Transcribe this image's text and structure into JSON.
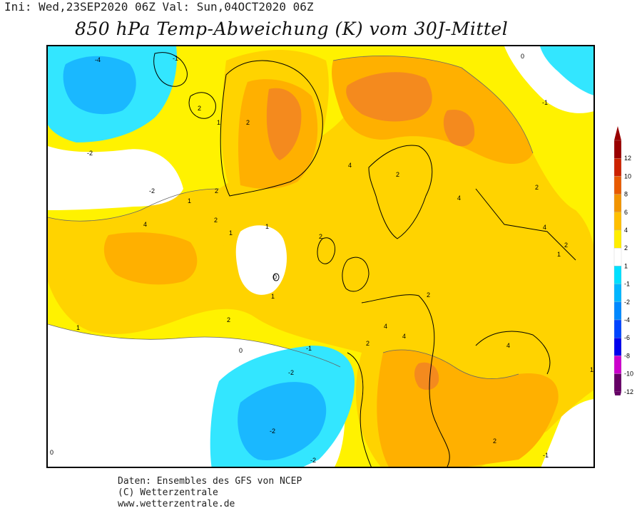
{
  "header": {
    "run_info": "Ini: Wed,23SEP2020 06Z Val: Sun,04OCT2020 06Z",
    "title": "850 hPa Temp-Abweichung (K) vom 30J-Mittel"
  },
  "legend": {
    "ticks": [
      "12",
      "10",
      "8",
      "6",
      "4",
      "2",
      "1",
      "-1",
      "-2",
      "-4",
      "-6",
      "-8",
      "-10",
      "-12"
    ],
    "colors": [
      "#990000",
      "#cc2200",
      "#e85a00",
      "#f29400",
      "#ffbf00",
      "#ffee00",
      "#ffffff",
      "#00e0ff",
      "#00b6ff",
      "#0088ff",
      "#0044ff",
      "#0000ee",
      "#cc00cc",
      "#660066"
    ]
  },
  "colors": {
    "anom_1_2": "#fff200",
    "anom_2_4": "#ffd300",
    "anom_4_6": "#ffb000",
    "anom_6_8": "#f48a1e",
    "neg_0_1": "#ffffff",
    "neg_1_2": "#33e6ff",
    "neg_2_4": "#1ab8ff"
  },
  "contour_labels": [
    {
      "text": "-4"
    },
    {
      "text": "-1"
    },
    {
      "text": "-1"
    },
    {
      "text": "-2"
    },
    {
      "text": "-2"
    },
    {
      "text": "0"
    },
    {
      "text": "2"
    },
    {
      "text": "2"
    },
    {
      "text": "1"
    },
    {
      "text": "4"
    },
    {
      "text": "1"
    },
    {
      "text": "2"
    },
    {
      "text": "2"
    },
    {
      "text": "4"
    },
    {
      "text": "2"
    },
    {
      "text": "1"
    },
    {
      "text": "1"
    },
    {
      "text": "0"
    },
    {
      "text": "1"
    },
    {
      "text": "2"
    },
    {
      "text": "1"
    },
    {
      "text": "0"
    },
    {
      "text": "-1"
    },
    {
      "text": "2"
    },
    {
      "text": "4"
    },
    {
      "text": "2"
    },
    {
      "text": "4"
    },
    {
      "text": "4"
    },
    {
      "text": "2"
    },
    {
      "text": "2"
    },
    {
      "text": "1"
    },
    {
      "text": "-2"
    },
    {
      "text": "-2"
    },
    {
      "text": "-2"
    },
    {
      "text": "0"
    },
    {
      "text": "4"
    },
    {
      "text": "2"
    },
    {
      "text": "-1"
    },
    {
      "text": "1"
    },
    {
      "text": "2"
    },
    {
      "text": "4"
    }
  ],
  "footer": {
    "line1": "Daten: Ensembles des GFS von NCEP",
    "line2": "(C) Wetterzentrale",
    "line3": "www.wetterzentrale.de"
  }
}
